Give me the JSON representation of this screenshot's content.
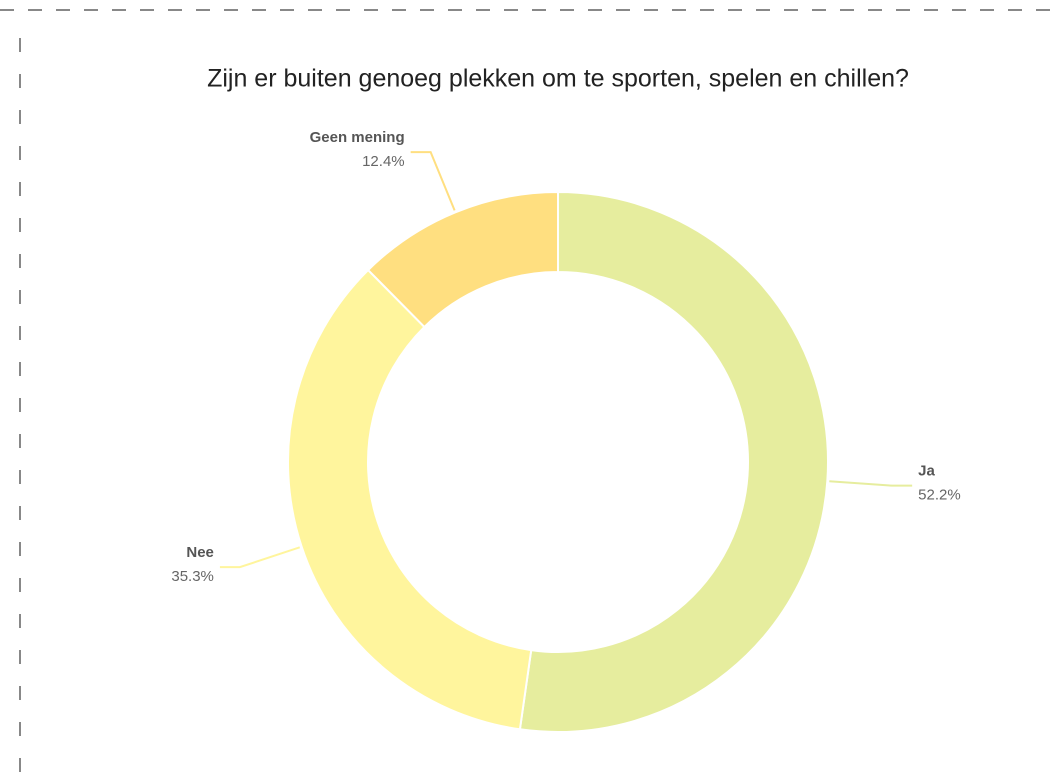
{
  "chart_data": {
    "type": "donut",
    "title": "Zijn er buiten genoeg plekken om te sporten, spelen en chillen?",
    "categories": [
      "Ja",
      "Nee",
      "Geen mening"
    ],
    "values": [
      52.2,
      35.3,
      12.4
    ],
    "value_labels": [
      "52.2%",
      "35.3%",
      "12.4%"
    ],
    "colors": [
      "#e6ed9e",
      "#fff59d",
      "#ffdf80"
    ]
  }
}
